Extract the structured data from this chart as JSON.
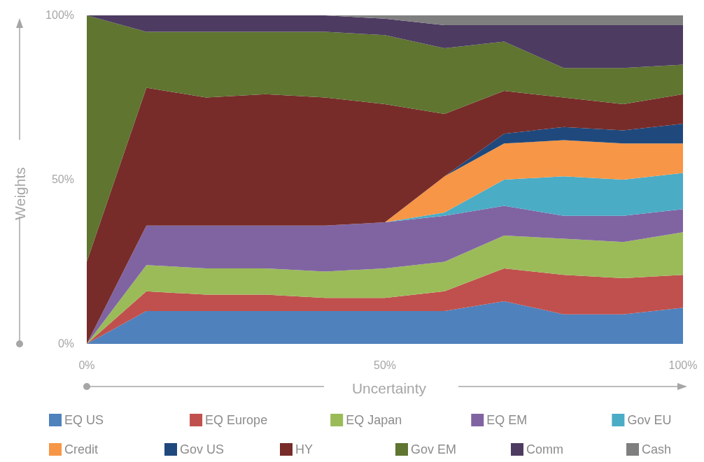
{
  "chart_data": {
    "type": "area",
    "stacked": true,
    "xlabel": "Uncertainty",
    "ylabel": "Weights",
    "x": [
      0,
      10,
      20,
      30,
      40,
      50,
      60,
      70,
      80,
      90,
      100
    ],
    "xlim": [
      0,
      100
    ],
    "xticks": [
      {
        "value": 0,
        "label": "0%"
      },
      {
        "value": 50,
        "label": "50%"
      },
      {
        "value": 100,
        "label": "100%"
      }
    ],
    "ylim": [
      0,
      100
    ],
    "yticks": [
      {
        "value": 0,
        "label": "0%"
      },
      {
        "value": 50,
        "label": "50%"
      },
      {
        "value": 100,
        "label": "100%"
      }
    ],
    "grid": false,
    "legend": "bottom",
    "series": [
      {
        "name": "EQ US",
        "color": "#4f81bd",
        "values": [
          0,
          10,
          10,
          10,
          10,
          10,
          10,
          13,
          9,
          9,
          11
        ]
      },
      {
        "name": "EQ Europe",
        "color": "#c0504d",
        "values": [
          0,
          6,
          5,
          5,
          4,
          4,
          6,
          10,
          12,
          11,
          10
        ]
      },
      {
        "name": "EQ Japan",
        "color": "#9bbb59",
        "values": [
          0,
          8,
          8,
          8,
          8,
          9,
          9,
          10,
          11,
          11,
          13
        ]
      },
      {
        "name": "EQ EM",
        "color": "#8064a2",
        "values": [
          0,
          12,
          13,
          13,
          14,
          14,
          14,
          9,
          7,
          8,
          7
        ]
      },
      {
        "name": "Gov EU",
        "color": "#4bacc6",
        "values": [
          0,
          0,
          0,
          0,
          0,
          0,
          1,
          8,
          12,
          11,
          11
        ]
      },
      {
        "name": "Credit",
        "color": "#f79646",
        "values": [
          0,
          0,
          0,
          0,
          0,
          0,
          11,
          11,
          11,
          11,
          9
        ]
      },
      {
        "name": "Gov US",
        "color": "#1f497d",
        "values": [
          0,
          0,
          0,
          0,
          0,
          0,
          0,
          3,
          4,
          4,
          6
        ]
      },
      {
        "name": "HY",
        "color": "#772c2a",
        "values": [
          25,
          42,
          39,
          40,
          39,
          36,
          19,
          13,
          9,
          8,
          9
        ]
      },
      {
        "name": "Gov EM",
        "color": "#5f7530",
        "values": [
          75,
          17,
          20,
          19,
          20,
          21,
          20,
          15,
          9,
          11,
          9
        ]
      },
      {
        "name": "Comm",
        "color": "#4d3b62",
        "values": [
          0,
          5,
          5,
          5,
          5,
          5,
          7,
          5,
          13,
          13,
          12
        ]
      },
      {
        "name": "Cash",
        "color": "#7f7f7f",
        "values": [
          0,
          0,
          0,
          0,
          0,
          1,
          3,
          3,
          3,
          3,
          3
        ]
      }
    ]
  }
}
